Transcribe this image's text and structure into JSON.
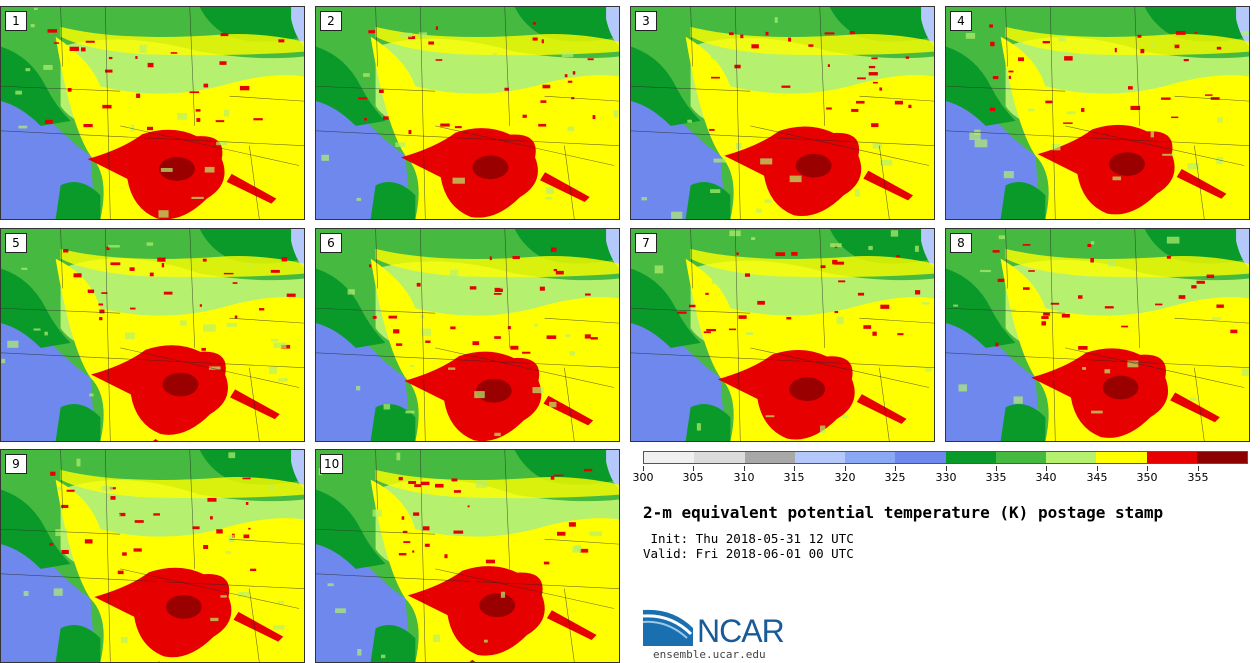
{
  "title": "2-m equivalent potential temperature (K) postage stamp",
  "init_text": " Init: Thu 2018-05-31 12 UTC",
  "valid_text": "Valid: Fri 2018-06-01 00 UTC",
  "logo_text": "NCAR",
  "site_text": "ensemble.ucar.edu",
  "members": [
    "1",
    "2",
    "3",
    "4",
    "5",
    "6",
    "7",
    "8",
    "9",
    "10"
  ],
  "colorbar": {
    "colors": [
      "#f0f0f0",
      "#dcdcdc",
      "#a8a8a8",
      "#b5c8fb",
      "#8aa8f4",
      "#6e88ee",
      "#0a9a2a",
      "#46b940",
      "#b5f06e",
      "#ffff00",
      "#e60000",
      "#8c0000"
    ],
    "tick_labels": [
      "300",
      "305",
      "310",
      "315",
      "320",
      "325",
      "330",
      "335",
      "340",
      "345",
      "350",
      "355"
    ]
  },
  "palette": {
    "green_dark": "#0a9a2a",
    "green": "#46b940",
    "green_light": "#b5f06e",
    "yellow": "#ffff00",
    "red": "#e60000",
    "maroon": "#8c0000",
    "blue": "#6e88ee",
    "blue_light": "#b5c8fb"
  }
}
